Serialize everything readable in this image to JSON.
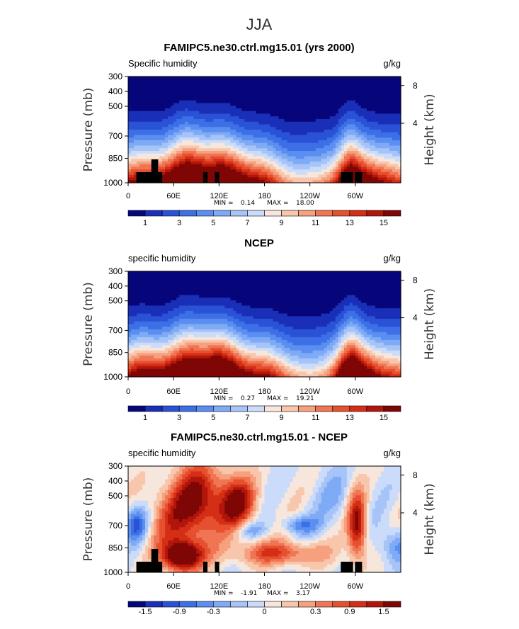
{
  "page_title": "JJA",
  "chart_data": [
    {
      "type": "heatmap",
      "title": "FAMIPC5.ne30.ctrl.mg15.01 (yrs 2000)",
      "left_label": "Specific humidity",
      "units": "g/kg",
      "ylabel": "Pressure (mb)",
      "ylabel_right": "Height (km)",
      "y_ticks": [
        "300",
        "400",
        "500",
        "700",
        "850",
        "1000"
      ],
      "y_ticks_right": [
        "8",
        "4"
      ],
      "x_ticks": [
        "0",
        "60E",
        "120E",
        "180",
        "120W",
        "60W"
      ],
      "stats": {
        "min_label": "MIN =",
        "min": "0.14",
        "max_label": "MAX =",
        "max": "18.00"
      },
      "colorbar_labels": [
        "1",
        "3",
        "5",
        "7",
        "9",
        "11",
        "13",
        "15"
      ],
      "colorbar_range": [
        0,
        16
      ],
      "field": "specific humidity, model, zonal-height cross section"
    },
    {
      "type": "heatmap",
      "title": "NCEP",
      "left_label": "specific humidity",
      "units": "g/kg",
      "ylabel": "Pressure (mb)",
      "ylabel_right": "Height (km)",
      "y_ticks": [
        "300",
        "400",
        "500",
        "700",
        "850",
        "1000"
      ],
      "y_ticks_right": [
        "8",
        "4"
      ],
      "x_ticks": [
        "0",
        "60E",
        "120E",
        "180",
        "120W",
        "60W"
      ],
      "stats": {
        "min_label": "MIN =",
        "min": "0.27",
        "max_label": "MAX =",
        "max": "19.21"
      },
      "colorbar_labels": [
        "1",
        "3",
        "5",
        "7",
        "9",
        "11",
        "13",
        "15"
      ],
      "colorbar_range": [
        0,
        16
      ],
      "field": "specific humidity, reanalysis"
    },
    {
      "type": "heatmap",
      "title": "FAMIPC5.ne30.ctrl.mg15.01 - NCEP",
      "left_label": "specific humidity",
      "units": "g/kg",
      "ylabel": "Pressure (mb)",
      "ylabel_right": "Height (km)",
      "y_ticks": [
        "300",
        "400",
        "500",
        "700",
        "850",
        "1000"
      ],
      "y_ticks_right": [
        "8",
        "4"
      ],
      "x_ticks": [
        "0",
        "60E",
        "120E",
        "180",
        "120W",
        "60W"
      ],
      "stats": {
        "min_label": "MIN =",
        "min": "-1.91",
        "max_label": "MAX =",
        "max": "3.17"
      },
      "colorbar_labels": [
        "-1.5",
        "-0.9",
        "-0.3",
        "0",
        "0.3",
        "0.9",
        "1.5"
      ],
      "colorbar_range": [
        -2,
        2
      ],
      "field": "specific humidity difference"
    }
  ],
  "colors": {
    "scale": [
      "#06067a",
      "#1a2fb8",
      "#2a52d6",
      "#3d6fe6",
      "#5a8ef0",
      "#7faaf5",
      "#a6c4f8",
      "#cadcfa",
      "#f6e6dc",
      "#f8c6ac",
      "#f6a07e",
      "#f07554",
      "#e6502f",
      "#d42e16",
      "#b2160b",
      "#7e0604"
    ],
    "terrain": "#000000"
  }
}
